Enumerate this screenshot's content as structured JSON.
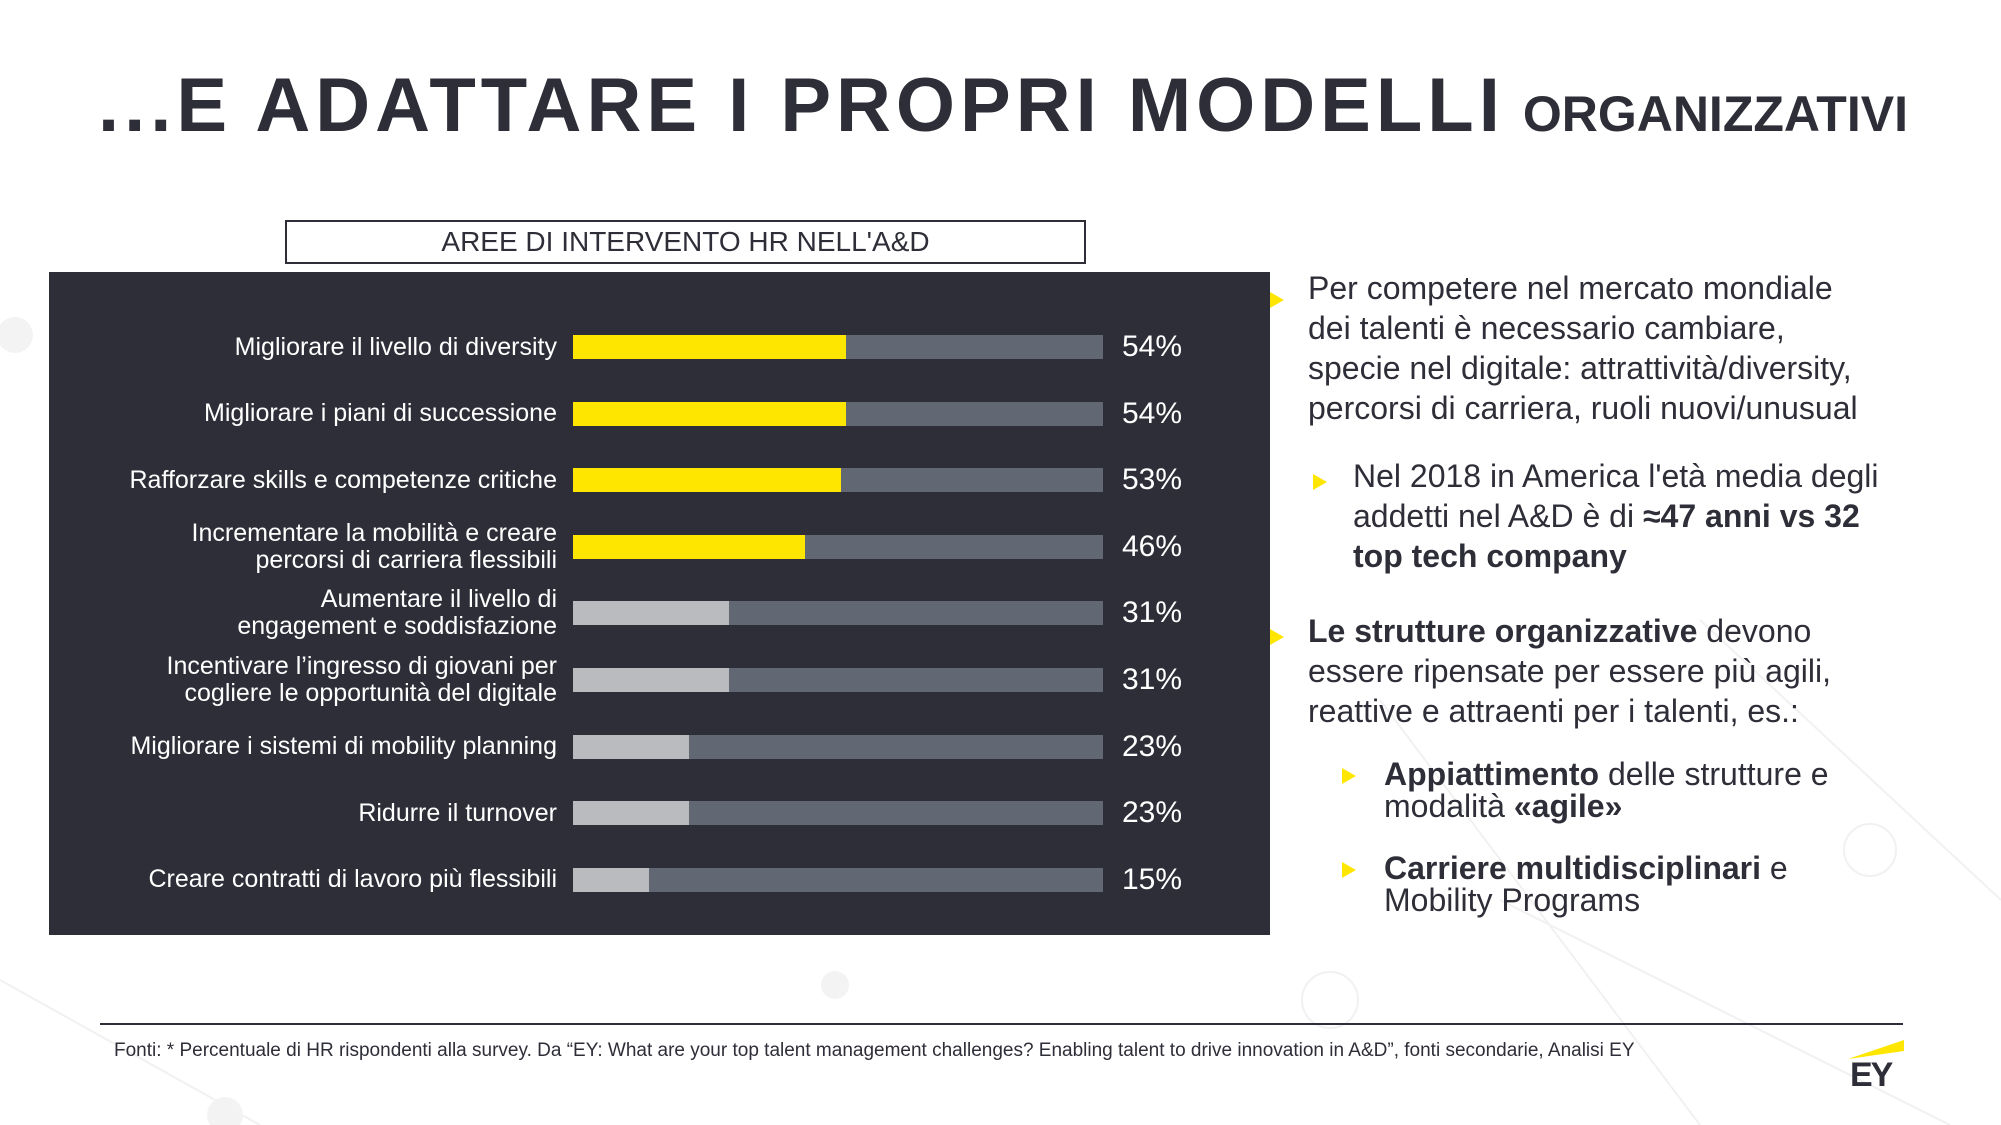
{
  "title": {
    "main": "...E ADATTARE I PROPRI MODELLI",
    "sub": "ORGANIZZATIVI"
  },
  "colors": {
    "dark": "#2e2e38",
    "accent_yellow": "#ffe600",
    "track_gray": "#626873",
    "fill_light_gray": "#b9bbbe"
  },
  "chart_data": {
    "type": "bar",
    "orientation": "horizontal",
    "title": "AREE DI INTERVENTO HR NELL'A&D",
    "xlabel": "",
    "ylabel": "",
    "xlim": [
      0,
      100
    ],
    "unit": "%",
    "categories": [
      "Migliorare il livello di diversity",
      "Migliorare i piani di successione",
      "Rafforzare skills e competenze critiche",
      "Incrementare la mobilità e creare percorsi di carriera flessibili",
      "Aumentare il livello di engagement e soddisfazione",
      "Incentivare l'ingresso di giovani per cogliere le opportunità del digitale",
      "Migliorare i sistemi di mobility planning",
      "Ridurre il turnover",
      "Creare contratti di lavoro più flessibili"
    ],
    "label_lines": [
      [
        "Migliorare il livello di diversity"
      ],
      [
        "Migliorare i piani di successione"
      ],
      [
        "Rafforzare skills e competenze critiche"
      ],
      [
        "Incrementare la mobilità e creare",
        "percorsi di carriera flessibili"
      ],
      [
        "Aumentare il livello di",
        "engagement e soddisfazione"
      ],
      [
        "Incentivare l’ingresso di giovani per",
        "cogliere le opportunità del digitale"
      ],
      [
        "Migliorare i sistemi di mobility planning"
      ],
      [
        "Ridurre il turnover"
      ],
      [
        "Creare contratti di lavoro più flessibili"
      ]
    ],
    "values": [
      54,
      54,
      53,
      46,
      31,
      31,
      23,
      23,
      15
    ],
    "value_labels": [
      "54%",
      "54%",
      "53%",
      "46%",
      "31%",
      "31%",
      "23%",
      "23%",
      "15%"
    ],
    "highlighted": [
      true,
      true,
      true,
      true,
      false,
      false,
      false,
      false,
      false
    ]
  },
  "right_panel": {
    "bullet1": "Per competere nel mercato mondiale dei talenti è necessario cambiare, specie nel digitale: attrattività/diversity, percorsi di carriera, ruoli nuovi/unusual",
    "bullet1_lines": [
      "Per competere nel mercato mondiale",
      "dei talenti è necessario cambiare,",
      "specie nel digitale: attrattività/diversity,",
      "percorsi di carriera, ruoli nuovi/unusual"
    ],
    "sub_bullet1": {
      "lines": [
        "Nel 2018 in America l'età media degli",
        "addetti nel A&D è di "
      ],
      "bold_inline": "≈47 anni vs 32",
      "bold_line": "top tech company"
    },
    "bullet2": {
      "bold": "Le strutture organizzative",
      "rest_first": " devono",
      "lines": [
        "essere ripensate per essere più agili,",
        "reattive e attraenti per i talenti, es.:"
      ]
    },
    "sub_bullet2": {
      "bold": "Appiattimento",
      "rest": " delle strutture e",
      "line2_pre": "modalità ",
      "line2_bold": "«agile»"
    },
    "sub_bullet3": {
      "bold": "Carriere multidisciplinari",
      "rest": " e",
      "line2": "Mobility Programs"
    }
  },
  "footer": {
    "text": "Fonti: * Percentuale di HR rispondenti alla survey. Da “EY: What are your top talent management challenges? Enabling talent to drive innovation in A&D”, fonti secondarie, Analisi EY"
  },
  "logo": {
    "text": "EY"
  }
}
